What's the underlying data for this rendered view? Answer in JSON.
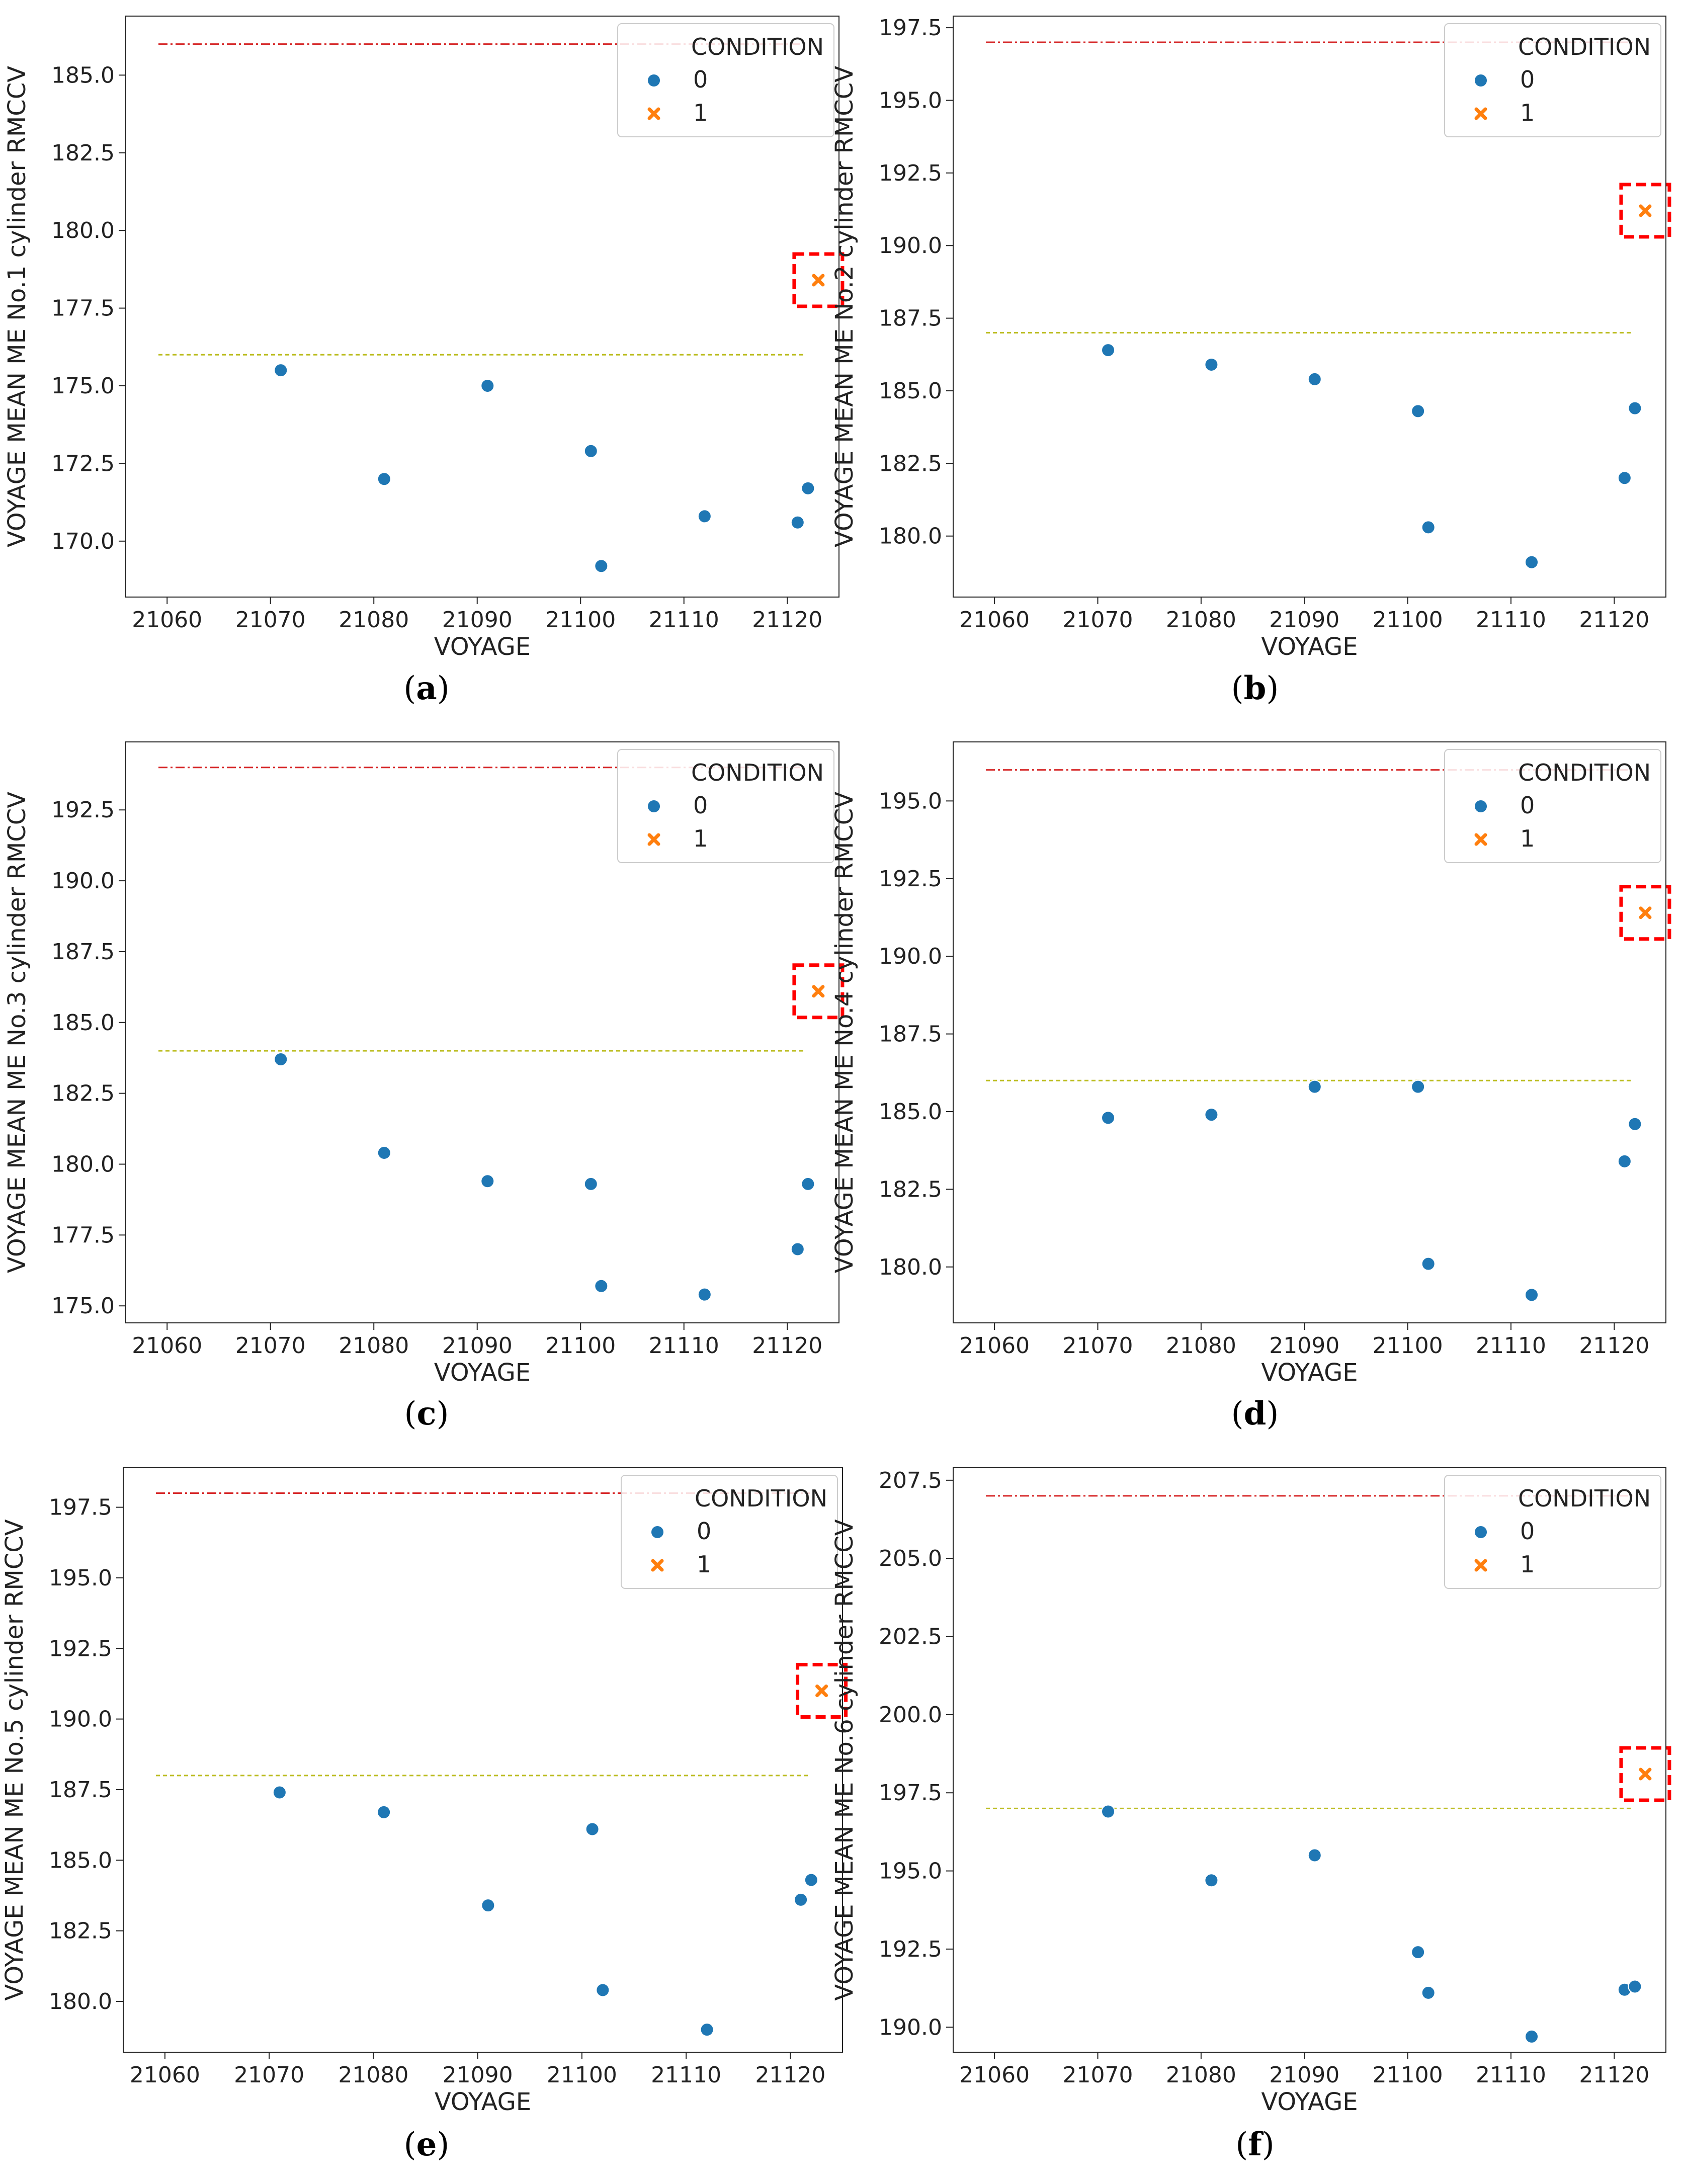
{
  "figure": {
    "condition_colors": {
      "0": "#1f77b4",
      "1": "#ff7f0e"
    },
    "upper_line_color": "#d62728",
    "lower_line_color": "#bcbd22",
    "highlight_box_color": "#ff0000"
  },
  "chart_data": [
    {
      "type": "scatter",
      "panel_label": "a",
      "xlabel": "VOYAGE",
      "ylabel": "VOYAGE MEAN ME No.1 cylinder RMCCV",
      "xlim": [
        21056,
        21125
      ],
      "ylim": [
        168.2,
        186.9
      ],
      "xticks": [
        21060,
        21070,
        21080,
        21090,
        21100,
        21110,
        21120
      ],
      "yticks": [
        170.0,
        172.5,
        175.0,
        177.5,
        180.0,
        182.5,
        185.0
      ],
      "legend": {
        "title": "CONDITION",
        "entries": [
          "0",
          "1"
        ],
        "position": "top-right"
      },
      "hlines": [
        {
          "y": 186.0,
          "style": "upper"
        },
        {
          "y": 176.0,
          "style": "lower"
        }
      ],
      "series": [
        {
          "name": "0",
          "marker": "circle",
          "points": [
            [
              21071,
              175.5
            ],
            [
              21081,
              172.0
            ],
            [
              21091,
              175.0
            ],
            [
              21101,
              172.9
            ],
            [
              21102,
              169.2
            ],
            [
              21112,
              170.8
            ],
            [
              21121,
              170.6
            ],
            [
              21122,
              171.7
            ]
          ]
        },
        {
          "name": "1",
          "marker": "x",
          "points": [
            [
              21123,
              178.4
            ]
          ]
        }
      ],
      "highlight": [
        21123,
        178.4
      ]
    },
    {
      "type": "scatter",
      "panel_label": "b",
      "xlabel": "VOYAGE",
      "ylabel": "VOYAGE MEAN ME No.2 cylinder RMCCV",
      "xlim": [
        21056,
        21125
      ],
      "ylim": [
        177.9,
        197.9
      ],
      "xticks": [
        21060,
        21070,
        21080,
        21090,
        21100,
        21110,
        21120
      ],
      "yticks": [
        180.0,
        182.5,
        185.0,
        187.5,
        190.0,
        192.5,
        195.0,
        197.5
      ],
      "legend": {
        "title": "CONDITION",
        "entries": [
          "0",
          "1"
        ],
        "position": "top-right"
      },
      "hlines": [
        {
          "y": 197.0,
          "style": "upper"
        },
        {
          "y": 187.0,
          "style": "lower"
        }
      ],
      "series": [
        {
          "name": "0",
          "marker": "circle",
          "points": [
            [
              21071,
              186.4
            ],
            [
              21081,
              185.9
            ],
            [
              21091,
              185.4
            ],
            [
              21101,
              184.3
            ],
            [
              21102,
              180.3
            ],
            [
              21112,
              179.1
            ],
            [
              21121,
              182.0
            ],
            [
              21122,
              184.4
            ]
          ]
        },
        {
          "name": "1",
          "marker": "x",
          "points": [
            [
              21123,
              191.2
            ]
          ]
        }
      ],
      "highlight": [
        21123,
        191.2
      ]
    },
    {
      "type": "scatter",
      "panel_label": "c",
      "xlabel": "VOYAGE",
      "ylabel": "VOYAGE MEAN ME No.3 cylinder RMCCV",
      "xlim": [
        21056,
        21125
      ],
      "ylim": [
        174.4,
        194.9
      ],
      "xticks": [
        21060,
        21070,
        21080,
        21090,
        21100,
        21110,
        21120
      ],
      "yticks": [
        175.0,
        177.5,
        180.0,
        182.5,
        185.0,
        187.5,
        190.0,
        192.5
      ],
      "legend": {
        "title": "CONDITION",
        "entries": [
          "0",
          "1"
        ],
        "position": "top-right"
      },
      "hlines": [
        {
          "y": 194.0,
          "style": "upper"
        },
        {
          "y": 184.0,
          "style": "lower"
        }
      ],
      "series": [
        {
          "name": "0",
          "marker": "circle",
          "points": [
            [
              21071,
              183.7
            ],
            [
              21081,
              180.4
            ],
            [
              21091,
              179.4
            ],
            [
              21101,
              179.3
            ],
            [
              21102,
              175.7
            ],
            [
              21112,
              175.4
            ],
            [
              21121,
              177.0
            ],
            [
              21122,
              179.3
            ]
          ]
        },
        {
          "name": "1",
          "marker": "x",
          "points": [
            [
              21123,
              186.1
            ]
          ]
        }
      ],
      "highlight": [
        21123,
        186.1
      ]
    },
    {
      "type": "scatter",
      "panel_label": "d",
      "xlabel": "VOYAGE",
      "ylabel": "VOYAGE MEAN ME No.4 cylinder RMCCV",
      "xlim": [
        21056,
        21125
      ],
      "ylim": [
        178.2,
        196.9
      ],
      "xticks": [
        21060,
        21070,
        21080,
        21090,
        21100,
        21110,
        21120
      ],
      "yticks": [
        180.0,
        182.5,
        185.0,
        187.5,
        190.0,
        192.5,
        195.0
      ],
      "legend": {
        "title": "CONDITION",
        "entries": [
          "0",
          "1"
        ],
        "position": "top-right"
      },
      "hlines": [
        {
          "y": 196.0,
          "style": "upper"
        },
        {
          "y": 186.0,
          "style": "lower"
        }
      ],
      "series": [
        {
          "name": "0",
          "marker": "circle",
          "points": [
            [
              21071,
              184.8
            ],
            [
              21081,
              184.9
            ],
            [
              21091,
              185.8
            ],
            [
              21101,
              185.8
            ],
            [
              21102,
              180.1
            ],
            [
              21112,
              179.1
            ],
            [
              21121,
              183.4
            ],
            [
              21122,
              184.6
            ]
          ]
        },
        {
          "name": "1",
          "marker": "x",
          "points": [
            [
              21123,
              191.4
            ]
          ]
        }
      ],
      "highlight": [
        21123,
        191.4
      ]
    },
    {
      "type": "scatter",
      "panel_label": "e",
      "xlabel": "VOYAGE",
      "ylabel": "VOYAGE MEAN ME No.5 cylinder RMCCV",
      "xlim": [
        21056,
        21125
      ],
      "ylim": [
        178.2,
        198.9
      ],
      "xticks": [
        21060,
        21070,
        21080,
        21090,
        21100,
        21110,
        21120
      ],
      "yticks": [
        180.0,
        182.5,
        185.0,
        187.5,
        190.0,
        192.5,
        195.0,
        197.5
      ],
      "legend": {
        "title": "CONDITION",
        "entries": [
          "0",
          "1"
        ],
        "position": "top-right"
      },
      "hlines": [
        {
          "y": 198.0,
          "style": "upper"
        },
        {
          "y": 188.0,
          "style": "lower"
        }
      ],
      "series": [
        {
          "name": "0",
          "marker": "circle",
          "points": [
            [
              21071,
              187.4
            ],
            [
              21081,
              186.7
            ],
            [
              21091,
              183.4
            ],
            [
              21101,
              186.1
            ],
            [
              21102,
              180.4
            ],
            [
              21112,
              179.0
            ],
            [
              21121,
              183.6
            ],
            [
              21122,
              184.3
            ]
          ]
        },
        {
          "name": "1",
          "marker": "x",
          "points": [
            [
              21123,
              191.0
            ]
          ]
        }
      ],
      "highlight": [
        21123,
        191.0
      ]
    },
    {
      "type": "scatter",
      "panel_label": "f",
      "xlabel": "VOYAGE",
      "ylabel": "VOYAGE MEAN ME No.6 cylinder RMCCV",
      "xlim": [
        21056,
        21125
      ],
      "ylim": [
        189.2,
        207.9
      ],
      "xticks": [
        21060,
        21070,
        21080,
        21090,
        21100,
        21110,
        21120
      ],
      "yticks": [
        190.0,
        192.5,
        195.0,
        197.5,
        200.0,
        202.5,
        205.0,
        207.5
      ],
      "legend": {
        "title": "CONDITION",
        "entries": [
          "0",
          "1"
        ],
        "position": "top-right"
      },
      "hlines": [
        {
          "y": 207.0,
          "style": "upper"
        },
        {
          "y": 197.0,
          "style": "lower"
        }
      ],
      "series": [
        {
          "name": "0",
          "marker": "circle",
          "points": [
            [
              21071,
              196.9
            ],
            [
              21081,
              194.7
            ],
            [
              21091,
              195.5
            ],
            [
              21101,
              192.4
            ],
            [
              21102,
              191.1
            ],
            [
              21112,
              189.7
            ],
            [
              21121,
              191.2
            ],
            [
              21122,
              191.3
            ]
          ]
        },
        {
          "name": "1",
          "marker": "x",
          "points": [
            [
              21123,
              198.1
            ]
          ]
        }
      ],
      "highlight": [
        21123,
        198.1
      ]
    }
  ]
}
